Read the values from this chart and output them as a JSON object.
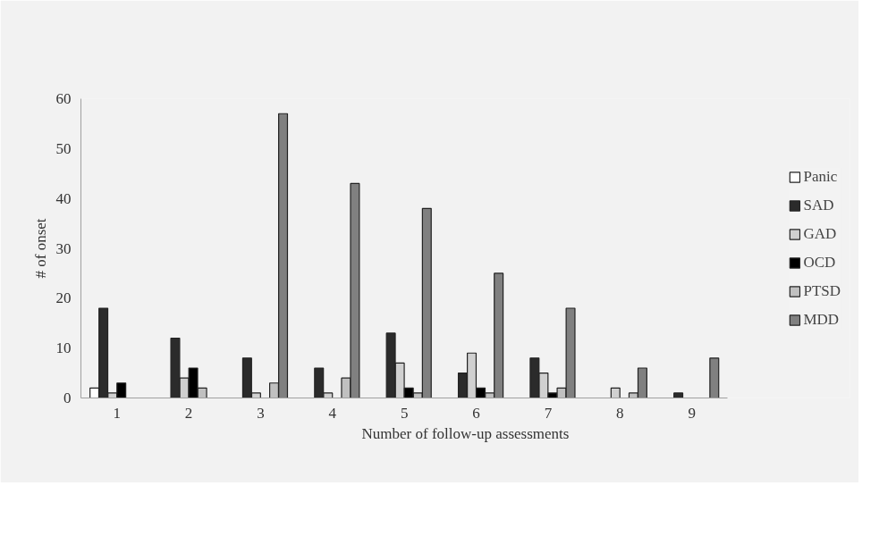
{
  "chart_data": {
    "type": "bar",
    "xlabel": "Number of follow-up assessments",
    "ylabel": "# of onset",
    "categories": [
      "1",
      "2",
      "3",
      "4",
      "5",
      "6",
      "7",
      "8",
      "9"
    ],
    "series": [
      {
        "name": "Panic",
        "color": "#ffffff",
        "values": [
          2,
          null,
          null,
          null,
          null,
          null,
          null,
          null,
          null
        ]
      },
      {
        "name": "SAD",
        "color": "#2b2b2b",
        "values": [
          18,
          12,
          8,
          6,
          13,
          5,
          8,
          null,
          1
        ]
      },
      {
        "name": "GAD",
        "color": "#d0d0d0",
        "values": [
          1,
          4,
          1,
          1,
          7,
          9,
          5,
          2,
          null
        ]
      },
      {
        "name": "OCD",
        "color": "#000000",
        "values": [
          3,
          6,
          null,
          null,
          2,
          2,
          1,
          null,
          null
        ]
      },
      {
        "name": "PTSD",
        "color": "#c0c0c0",
        "values": [
          null,
          2,
          3,
          4,
          1,
          1,
          2,
          1,
          null
        ]
      },
      {
        "name": "MDD",
        "color": "#808080",
        "values": [
          null,
          null,
          57,
          43,
          38,
          25,
          18,
          6,
          8
        ]
      }
    ],
    "ylim": [
      0,
      60
    ],
    "yticks": [
      0,
      10,
      20,
      30,
      40,
      50,
      60
    ],
    "grid": false,
    "legend": "right"
  }
}
